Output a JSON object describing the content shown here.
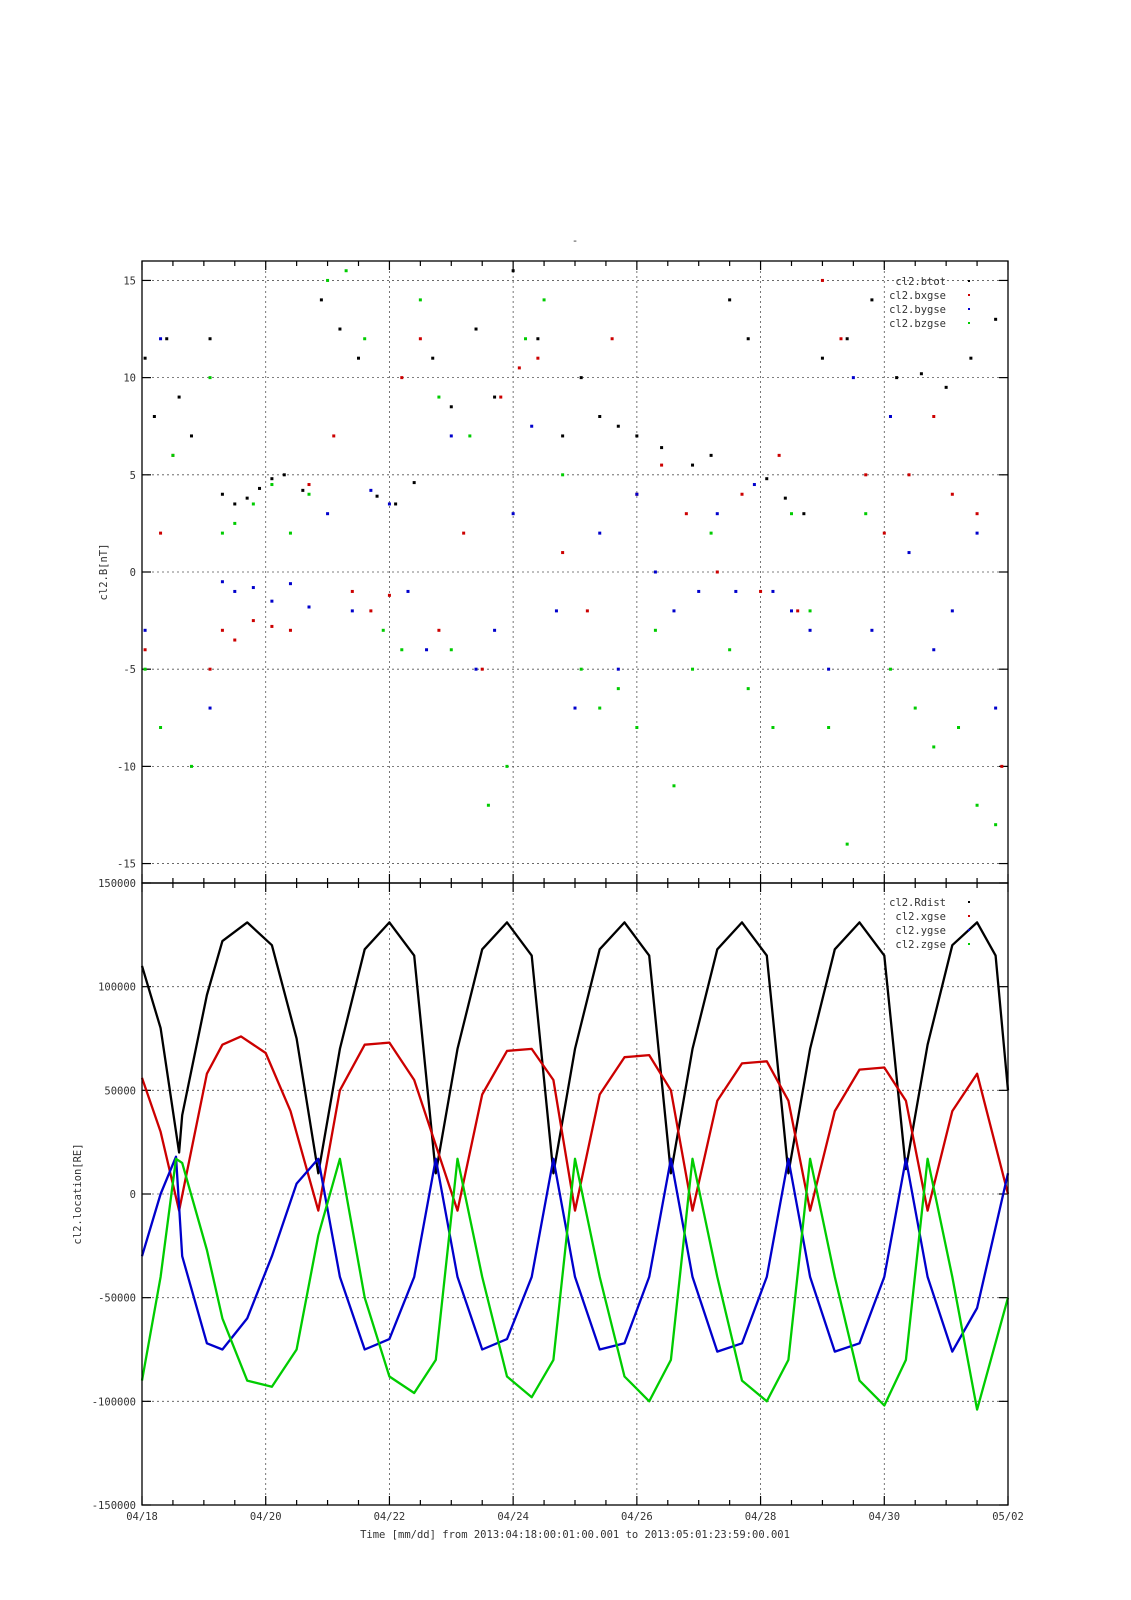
{
  "figure": {
    "top_mark": "-",
    "xlabel": "Time [mm/dd]  from 2013:04:18:00:01:00.001  to  2013:05:01:23:59:00.001"
  },
  "chart_data": [
    {
      "type": "scatter",
      "ylabel": "cl2.B[nT]",
      "ylim": [
        -16,
        16
      ],
      "yticks": [
        -15,
        -10,
        -5,
        0,
        5,
        10,
        15
      ],
      "ytick_labels": [
        "-15",
        "-10",
        "-5",
        "0",
        "5",
        "10",
        "15"
      ],
      "xlim": [
        0,
        14
      ],
      "grid": true,
      "legend_position": "top-right",
      "series": [
        {
          "name": "cl2.btot",
          "color": "#000000",
          "x": [
            0.05,
            0.2,
            0.4,
            0.6,
            0.8,
            1.1,
            1.3,
            1.5,
            1.7,
            1.9,
            2.1,
            2.3,
            2.6,
            2.9,
            3.2,
            3.5,
            3.8,
            4.1,
            4.4,
            4.7,
            5.0,
            5.4,
            5.7,
            6.0,
            6.4,
            6.8,
            7.1,
            7.4,
            7.7,
            8.0,
            8.4,
            8.9,
            9.2,
            9.5,
            9.8,
            10.1,
            10.4,
            10.7,
            11.0,
            11.4,
            11.8,
            12.2,
            12.6,
            13.0,
            13.4,
            13.8
          ],
          "y": [
            11,
            8,
            12,
            9,
            7,
            12,
            4,
            3.5,
            3.8,
            4.3,
            4.8,
            5.0,
            4.2,
            14,
            12.5,
            11,
            3.9,
            3.5,
            4.6,
            11,
            8.5,
            12.5,
            9,
            15.5,
            12,
            7,
            10,
            8,
            7.5,
            7.0,
            6.4,
            5.5,
            6,
            14,
            12,
            4.8,
            3.8,
            3.0,
            11,
            12,
            14,
            10,
            10.2,
            9.5,
            11,
            13
          ]
        },
        {
          "name": "cl2.bxgse",
          "color": "#cc0000",
          "x": [
            0.05,
            0.3,
            0.5,
            1.1,
            1.3,
            1.5,
            1.8,
            2.1,
            2.4,
            2.7,
            3.1,
            3.4,
            3.7,
            4.0,
            4.2,
            4.5,
            4.8,
            5.2,
            5.5,
            5.8,
            6.1,
            6.4,
            6.8,
            7.2,
            7.6,
            8.0,
            8.4,
            8.8,
            9.3,
            9.7,
            10.0,
            10.3,
            10.6,
            11.0,
            11.3,
            11.7,
            12.0,
            12.4,
            12.8,
            13.1,
            13.5,
            13.9
          ],
          "y": [
            -4,
            2,
            6,
            -5,
            -3,
            -3.5,
            -2.5,
            -2.8,
            -3,
            4.5,
            7,
            -1,
            -2,
            -1.2,
            10,
            12,
            -3,
            2,
            -5,
            9,
            10.5,
            11,
            1,
            -2,
            12,
            4,
            5.5,
            3,
            0,
            4,
            -1,
            6,
            -2,
            15,
            12,
            5,
            2,
            5,
            8,
            4,
            3,
            -10
          ]
        },
        {
          "name": "cl2.bygse",
          "color": "#0000cc",
          "x": [
            0.05,
            0.3,
            1.1,
            1.3,
            1.5,
            1.8,
            2.1,
            2.4,
            2.7,
            3.0,
            3.4,
            3.7,
            4.0,
            4.3,
            4.6,
            5.0,
            5.4,
            5.7,
            6.0,
            6.3,
            6.7,
            7.0,
            7.4,
            7.7,
            8.0,
            8.3,
            8.6,
            9.0,
            9.3,
            9.6,
            9.9,
            10.2,
            10.5,
            10.8,
            11.1,
            11.5,
            11.8,
            12.1,
            12.4,
            12.8,
            13.1,
            13.5,
            13.8
          ],
          "y": [
            -3,
            12,
            -7,
            -0.5,
            -1,
            -0.8,
            -1.5,
            -0.6,
            -1.8,
            3,
            -2,
            4.2,
            3.5,
            -1,
            -4,
            7,
            -5,
            -3,
            3,
            7.5,
            -2,
            -7,
            2,
            -5,
            4,
            0,
            -2,
            -1,
            3,
            -1,
            4.5,
            -1,
            -2,
            -3,
            -5,
            10,
            -3,
            8,
            1,
            -4,
            -2,
            2,
            -7
          ]
        },
        {
          "name": "cl2.bzgse",
          "color": "#00cc00",
          "x": [
            0.05,
            0.3,
            0.5,
            0.8,
            1.1,
            1.3,
            1.5,
            1.8,
            2.1,
            2.4,
            2.7,
            3.0,
            3.3,
            3.6,
            3.9,
            4.2,
            4.5,
            4.8,
            5.0,
            5.3,
            5.6,
            5.9,
            6.2,
            6.5,
            6.8,
            7.1,
            7.4,
            7.7,
            8.0,
            8.3,
            8.6,
            8.9,
            9.2,
            9.5,
            9.8,
            10.2,
            10.5,
            10.8,
            11.1,
            11.4,
            11.7,
            12.1,
            12.5,
            12.8,
            13.2,
            13.5,
            13.8
          ],
          "y": [
            -5,
            -8,
            6,
            -10,
            10,
            2,
            2.5,
            3.5,
            4.5,
            2,
            4,
            15,
            15.5,
            12,
            -3,
            -4,
            14,
            9,
            -4,
            7,
            -12,
            -10,
            12,
            14,
            5,
            -5,
            -7,
            -6,
            -8,
            -3,
            -11,
            -5,
            2,
            -4,
            -6,
            -8,
            3,
            -2,
            -8,
            -14,
            3,
            -5,
            -7,
            -9,
            -8,
            -12,
            -13
          ]
        }
      ]
    },
    {
      "type": "line",
      "ylabel": "cl2.location[RE]",
      "ylim": [
        -150000,
        150000
      ],
      "yticks": [
        -150000,
        -100000,
        -50000,
        0,
        50000,
        100000,
        150000
      ],
      "ytick_labels": [
        "-150000",
        "-100000",
        "-50000",
        "0",
        "50000",
        "100000",
        "150000"
      ],
      "xlim": [
        0,
        14
      ],
      "xticks": [
        0,
        2,
        4,
        6,
        8,
        10,
        12,
        14
      ],
      "xtick_labels": [
        "04/18",
        "04/20",
        "04/22",
        "04/24",
        "04/26",
        "04/28",
        "04/30",
        "05/02"
      ],
      "grid": true,
      "legend_position": "top-right",
      "series": [
        {
          "name": "cl2.Rdist",
          "color": "#000000",
          "x": [
            0,
            0.3,
            0.6,
            0.65,
            1.05,
            1.3,
            1.7,
            2.1,
            2.5,
            2.85,
            3.2,
            3.6,
            4.0,
            4.4,
            4.75,
            5.1,
            5.5,
            5.9,
            6.3,
            6.65,
            7.0,
            7.4,
            7.8,
            8.2,
            8.55,
            8.9,
            9.3,
            9.7,
            10.1,
            10.45,
            10.8,
            11.2,
            11.6,
            12.0,
            12.35,
            12.7,
            13.1,
            13.5,
            13.8,
            14
          ],
          "y": [
            110000,
            80000,
            20000,
            38000,
            96000,
            122000,
            131000,
            120000,
            75000,
            10000,
            70000,
            118000,
            131000,
            115000,
            10000,
            70000,
            118000,
            131000,
            115000,
            10000,
            70000,
            118000,
            131000,
            115000,
            10000,
            70000,
            118000,
            131000,
            115000,
            10000,
            70000,
            118000,
            131000,
            115000,
            12000,
            72000,
            120000,
            131000,
            115000,
            50000
          ]
        },
        {
          "name": "cl2.xgse",
          "color": "#cc0000",
          "x": [
            0,
            0.3,
            0.6,
            1.05,
            1.3,
            1.6,
            2.0,
            2.4,
            2.85,
            3.2,
            3.6,
            4.0,
            4.4,
            5.1,
            5.5,
            5.9,
            6.3,
            6.65,
            7.0,
            7.4,
            7.8,
            8.2,
            8.55,
            8.9,
            9.3,
            9.7,
            10.1,
            10.45,
            10.8,
            11.2,
            11.6,
            12.0,
            12.35,
            12.7,
            13.1,
            13.5,
            14
          ],
          "y": [
            56000,
            30000,
            -8000,
            58000,
            72000,
            76000,
            68000,
            40000,
            -8000,
            50000,
            72000,
            73000,
            55000,
            -8000,
            48000,
            69000,
            70000,
            55000,
            -8000,
            48000,
            66000,
            67000,
            50000,
            -8000,
            45000,
            63000,
            64000,
            45000,
            -8000,
            40000,
            60000,
            61000,
            45000,
            -8000,
            40000,
            58000,
            0
          ]
        },
        {
          "name": "cl2.ygse",
          "color": "#0000cc",
          "x": [
            0,
            0.3,
            0.55,
            0.65,
            1.05,
            1.3,
            1.7,
            2.1,
            2.5,
            2.85,
            3.2,
            3.6,
            4.0,
            4.4,
            4.75,
            5.1,
            5.5,
            5.9,
            6.3,
            6.65,
            7.0,
            7.4,
            7.8,
            8.2,
            8.55,
            8.9,
            9.3,
            9.7,
            10.1,
            10.45,
            10.8,
            11.2,
            11.6,
            12.0,
            12.35,
            12.7,
            13.1,
            13.5,
            14
          ],
          "y": [
            -30000,
            0,
            18000,
            -30000,
            -72000,
            -75000,
            -60000,
            -30000,
            5000,
            17000,
            -40000,
            -75000,
            -70000,
            -40000,
            17000,
            -40000,
            -75000,
            -70000,
            -40000,
            17000,
            -40000,
            -75000,
            -72000,
            -40000,
            17000,
            -40000,
            -76000,
            -72000,
            -40000,
            17000,
            -40000,
            -76000,
            -72000,
            -40000,
            17000,
            -40000,
            -76000,
            -55000,
            10000
          ]
        },
        {
          "name": "cl2.zgse",
          "color": "#00cc00",
          "x": [
            0,
            0.3,
            0.55,
            0.65,
            1.05,
            1.3,
            1.7,
            2.1,
            2.5,
            2.85,
            3.2,
            3.6,
            4.0,
            4.4,
            4.75,
            5.1,
            5.5,
            5.9,
            6.3,
            6.65,
            7.0,
            7.4,
            7.8,
            8.2,
            8.55,
            8.9,
            9.3,
            9.7,
            10.1,
            10.45,
            10.8,
            11.2,
            11.6,
            12.0,
            12.35,
            12.7,
            13.1,
            13.5,
            14
          ],
          "y": [
            -90000,
            -40000,
            17000,
            15000,
            -27000,
            -60000,
            -90000,
            -93000,
            -75000,
            -20000,
            17000,
            -50000,
            -88000,
            -96000,
            -80000,
            17000,
            -40000,
            -88000,
            -98000,
            -80000,
            17000,
            -40000,
            -88000,
            -100000,
            -80000,
            17000,
            -40000,
            -90000,
            -100000,
            -80000,
            17000,
            -40000,
            -90000,
            -102000,
            -80000,
            17000,
            -40000,
            -104000,
            -50000
          ]
        }
      ]
    }
  ]
}
